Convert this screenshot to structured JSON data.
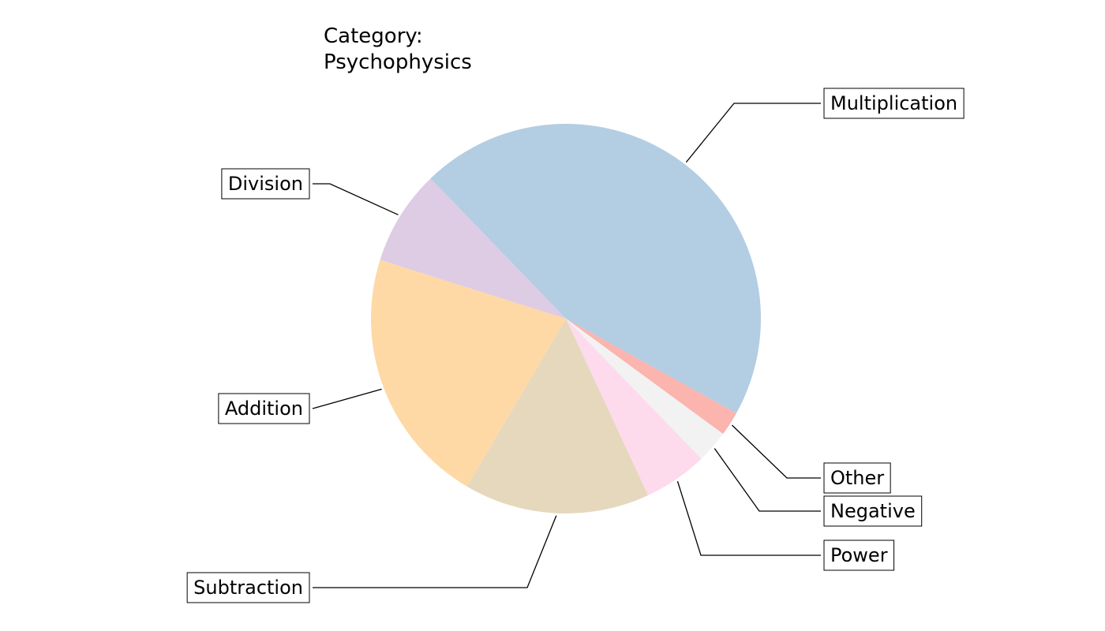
{
  "chart_data": {
    "type": "pie",
    "title_lines": [
      "Category:",
      "Psychophysics"
    ],
    "slices": [
      {
        "label": "Multiplication",
        "value": 45.3,
        "color": "#b3cde3"
      },
      {
        "label": "Other",
        "value": 2.0,
        "color": "#fbb4ae"
      },
      {
        "label": "Negative",
        "value": 2.7,
        "color": "#f2f2f2"
      },
      {
        "label": "Power",
        "value": 5.3,
        "color": "#fddaec"
      },
      {
        "label": "Subtraction",
        "value": 15.4,
        "color": "#e5d8bd"
      },
      {
        "label": "Addition",
        "value": 21.4,
        "color": "#fed9a6"
      },
      {
        "label": "Division",
        "value": 7.9,
        "color": "#decbe4"
      }
    ],
    "start_angle_deg": 134,
    "direction": "clockwise",
    "legend": "none"
  }
}
